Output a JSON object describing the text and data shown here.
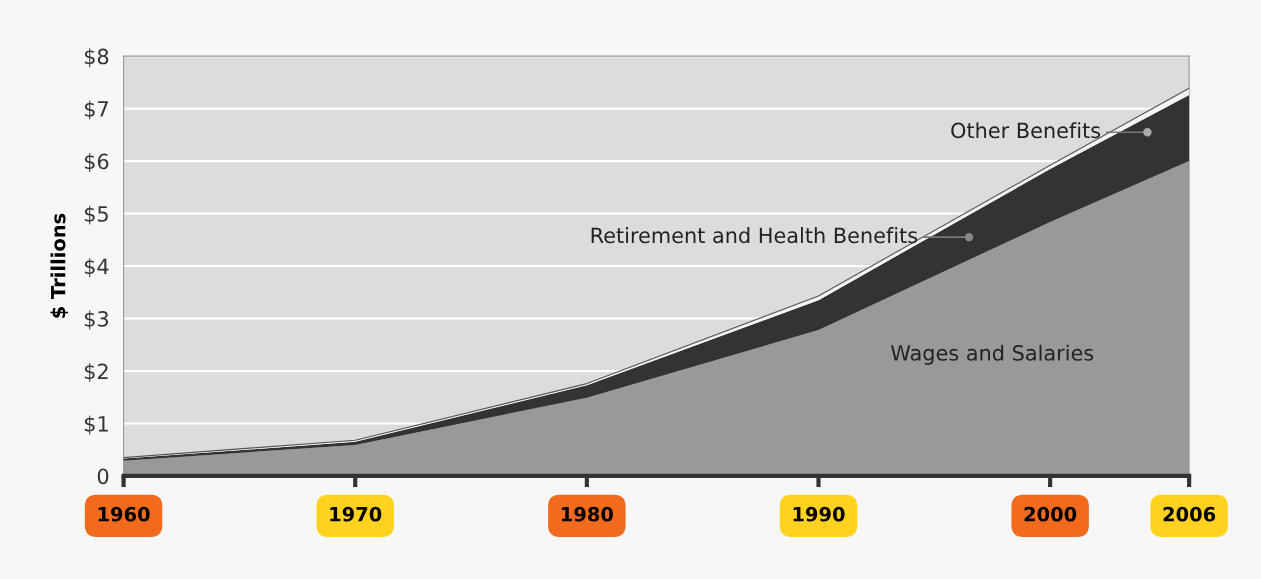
{
  "chart_data": {
    "type": "area",
    "stacked": true,
    "ylabel": "$ Trillions",
    "x": [
      1960,
      1970,
      1980,
      1990,
      2000,
      2006
    ],
    "series": [
      {
        "name": "Wages and Salaries",
        "color": "#999999",
        "values": [
          0.29,
          0.59,
          1.49,
          2.78,
          4.84,
          6.0
        ]
      },
      {
        "name": "Retirement and Health Benefits",
        "color": "#333333",
        "values": [
          0.04,
          0.06,
          0.24,
          0.57,
          1.01,
          1.26
        ]
      },
      {
        "name": "Other Benefits",
        "color": "#f4f4f4",
        "values": [
          0.02,
          0.03,
          0.03,
          0.08,
          0.07,
          0.13
        ]
      }
    ],
    "xlim": [
      1960,
      2006
    ],
    "xticks": [
      1960,
      1970,
      1980,
      1990,
      2000,
      2006
    ],
    "ylim": [
      0,
      8
    ],
    "yticks": [
      {
        "value": 0,
        "label": "0"
      },
      {
        "value": 1,
        "label": "$1"
      },
      {
        "value": 2,
        "label": "$2"
      },
      {
        "value": 3,
        "label": "$3"
      },
      {
        "value": 4,
        "label": "$4"
      },
      {
        "value": 5,
        "label": "$5"
      },
      {
        "value": 6,
        "label": "$6"
      },
      {
        "value": 7,
        "label": "$7"
      },
      {
        "value": 8,
        "label": "$8"
      }
    ],
    "grid": "y",
    "legend": false
  }
}
